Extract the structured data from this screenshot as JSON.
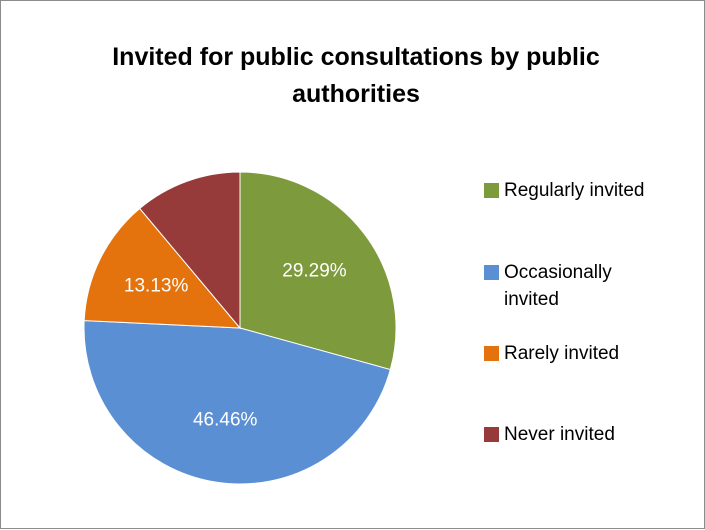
{
  "chart_data": {
    "type": "pie",
    "title": "Invited for public consultations by public authorities",
    "slices": [
      {
        "label": "Regularly invited",
        "value": 29.29,
        "display": "29.29%",
        "color": "#7d9a3c"
      },
      {
        "label": "Occasionally invited",
        "value": 46.46,
        "display": "46.46%",
        "color": "#5b8fd4"
      },
      {
        "label": "Rarely invited",
        "value": 13.13,
        "display": "13.13%",
        "color": "#e4730d"
      },
      {
        "label": "Never invited",
        "value": 11.11,
        "display": "",
        "color": "#963b3a"
      }
    ],
    "legend_position": "right"
  }
}
